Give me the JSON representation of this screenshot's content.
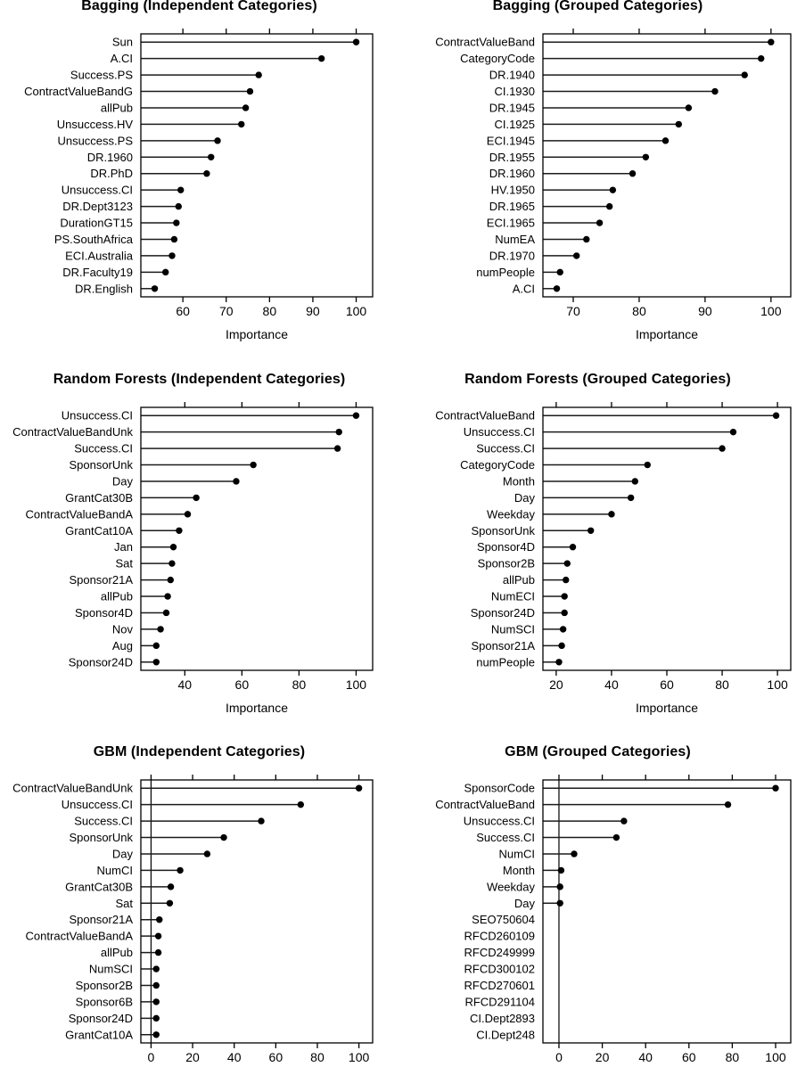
{
  "figure": {
    "description": "Variable importance dot plots for three models (Bagging, Random Forests, GBM) with independent vs grouped categories",
    "colors": {
      "background": "#ffffff",
      "text": "#000000",
      "box": "#000000",
      "lollipop_line": "#1c1c1c",
      "dot": "#000000"
    }
  },
  "chart_data": [
    {
      "type": "scatter",
      "style": "cleveland-dotplot",
      "title": "Bagging (Independent Categories)",
      "xlabel": "Importance",
      "ylabel": "",
      "grid": false,
      "legend": "none",
      "zero_line": false,
      "xlim": [
        50.3,
        103.8
      ],
      "xticks": [
        60,
        70,
        80,
        90,
        100
      ],
      "categories": [
        "Sun",
        "A.CI",
        "Success.PS",
        "ContractValueBandG",
        "allPub",
        "Unsuccess.HV",
        "Unsuccess.PS",
        "DR.1960",
        "DR.PhD",
        "Unsuccess.CI",
        "DR.Dept3123",
        "DurationGT15",
        "PS.SouthAfrica",
        "ECI.Australia",
        "DR.Faculty19",
        "DR.English"
      ],
      "values": [
        100,
        92,
        77.5,
        75.5,
        74.5,
        73.5,
        68,
        66.5,
        65.5,
        59.5,
        59,
        58.5,
        58,
        57.5,
        56,
        53.5
      ]
    },
    {
      "type": "scatter",
      "style": "cleveland-dotplot",
      "title": "Bagging (Grouped Categories)",
      "xlabel": "Importance",
      "ylabel": "",
      "grid": false,
      "legend": "none",
      "zero_line": false,
      "xlim": [
        65.4,
        103.0
      ],
      "xticks": [
        70,
        80,
        90,
        100
      ],
      "categories": [
        "ContractValueBand",
        "CategoryCode",
        "DR.1940",
        "CI.1930",
        "DR.1945",
        "CI.1925",
        "ECI.1945",
        "DR.1955",
        "DR.1960",
        "HV.1950",
        "DR.1965",
        "ECI.1965",
        "NumEA",
        "DR.1970",
        "numPeople",
        "A.CI"
      ],
      "values": [
        100,
        98.5,
        96,
        91.5,
        87.5,
        86,
        84,
        81,
        79,
        76,
        75.5,
        74,
        72,
        70.5,
        68,
        67.5
      ]
    },
    {
      "type": "scatter",
      "style": "cleveland-dotplot",
      "title": "Random Forests (Independent Categories)",
      "xlabel": "Importance",
      "ylabel": "",
      "grid": false,
      "legend": "none",
      "zero_line": false,
      "xlim": [
        24.6,
        105.8
      ],
      "xticks": [
        40,
        60,
        80,
        100
      ],
      "categories": [
        "Unsuccess.CI",
        "ContractValueBandUnk",
        "Success.CI",
        "SponsorUnk",
        "Day",
        "GrantCat30B",
        "ContractValueBandA",
        "GrantCat10A",
        "Jan",
        "Sat",
        "Sponsor21A",
        "allPub",
        "Sponsor4D",
        "Nov",
        "Aug",
        "Sponsor24D"
      ],
      "values": [
        100,
        94,
        93.5,
        64,
        58,
        44,
        41,
        38,
        36,
        35.5,
        35,
        34,
        33.5,
        31.5,
        30,
        30
      ]
    },
    {
      "type": "scatter",
      "style": "cleveland-dotplot",
      "title": "Random Forests (Grouped Categories)",
      "xlabel": "Importance",
      "ylabel": "",
      "grid": false,
      "legend": "none",
      "zero_line": false,
      "xlim": [
        15.2,
        104.8
      ],
      "xticks": [
        20,
        40,
        60,
        80,
        100
      ],
      "categories": [
        "ContractValueBand",
        "Unsuccess.CI",
        "Success.CI",
        "CategoryCode",
        "Month",
        "Day",
        "Weekday",
        "SponsorUnk",
        "Sponsor4D",
        "Sponsor2B",
        "allPub",
        "NumECI",
        "Sponsor24D",
        "NumSCI",
        "Sponsor21A",
        "numPeople"
      ],
      "values": [
        99.5,
        84,
        80,
        53,
        48.5,
        47,
        40,
        32.5,
        26,
        24,
        23.5,
        23,
        23,
        22.5,
        22,
        21
      ]
    },
    {
      "type": "scatter",
      "style": "cleveland-dotplot",
      "title": "GBM (Independent Categories)",
      "xlabel": "",
      "ylabel": "",
      "grid": false,
      "legend": "none",
      "zero_line": true,
      "xlim": [
        -4.9,
        106.6
      ],
      "xticks": [
        0,
        20,
        40,
        60,
        80,
        100
      ],
      "categories": [
        "ContractValueBandUnk",
        "Unsuccess.CI",
        "Success.CI",
        "SponsorUnk",
        "Day",
        "NumCI",
        "GrantCat30B",
        "Sat",
        "Sponsor21A",
        "ContractValueBandA",
        "allPub",
        "NumSCI",
        "Sponsor2B",
        "Sponsor6B",
        "Sponsor24D",
        "GrantCat10A"
      ],
      "values": [
        100,
        72,
        53,
        35,
        27,
        14,
        9.5,
        9,
        4,
        3.5,
        3.5,
        2.5,
        2.5,
        2.5,
        2.5,
        2.5
      ]
    },
    {
      "type": "scatter",
      "style": "cleveland-dotplot",
      "title": "GBM (Grouped Categories)",
      "xlabel": "",
      "ylabel": "",
      "grid": false,
      "legend": "none",
      "zero_line": true,
      "xlim": [
        -7.4,
        107.0
      ],
      "xticks": [
        0,
        20,
        40,
        60,
        80,
        100
      ],
      "categories": [
        "SponsorCode",
        "ContractValueBand",
        "Unsuccess.CI",
        "Success.CI",
        "NumCI",
        "Month",
        "Weekday",
        "Day",
        "SEO750604",
        "RFCD260109",
        "RFCD249999",
        "RFCD300102",
        "RFCD270601",
        "RFCD291104",
        "CI.Dept2893",
        "CI.Dept248"
      ],
      "values": [
        100,
        78,
        30,
        26.5,
        7,
        1,
        0.5,
        0.5,
        null,
        null,
        null,
        null,
        null,
        null,
        null,
        null
      ]
    }
  ]
}
